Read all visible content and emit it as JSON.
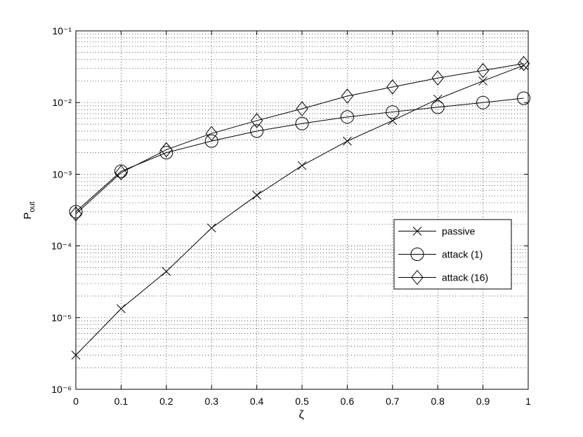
{
  "chart_data": {
    "type": "line",
    "xlabel": "ζ",
    "ylabel": "P",
    "ylabel_sub": "out",
    "x": [
      0,
      0.1,
      0.2,
      0.3,
      0.4,
      0.5,
      0.6,
      0.7,
      0.8,
      0.9,
      0.99
    ],
    "series": [
      {
        "name": "passive",
        "color": "#000000",
        "marker": "x",
        "values": [
          3e-06,
          1.33e-05,
          4.4e-05,
          0.000178,
          0.00051,
          0.00132,
          0.0029,
          0.0056,
          0.0112,
          0.02,
          0.033
        ]
      },
      {
        "name": "attack (1)",
        "color": "#000000",
        "marker": "circle",
        "values": [
          0.0003,
          0.0011,
          0.002,
          0.0029,
          0.004,
          0.0051,
          0.0063,
          0.0074,
          0.0086,
          0.01,
          0.0115
        ]
      },
      {
        "name": "attack (16)",
        "color": "#000000",
        "marker": "diamond",
        "values": [
          0.00028,
          0.00105,
          0.0022,
          0.0037,
          0.0056,
          0.0082,
          0.0123,
          0.0165,
          0.022,
          0.028,
          0.035
        ]
      }
    ],
    "xlim": [
      0,
      1
    ],
    "xticks": [
      0,
      0.1,
      0.2,
      0.3,
      0.4,
      0.5,
      0.6,
      0.7,
      0.8,
      0.9,
      1
    ],
    "ylim": [
      1e-06,
      0.1
    ],
    "yscale": "log",
    "yticks": [
      {
        "value": 1e-06,
        "label": "10⁻⁶"
      },
      {
        "value": 1e-05,
        "label": "10⁻⁵"
      },
      {
        "value": 0.0001,
        "label": "10⁻⁴"
      },
      {
        "value": 0.001,
        "label": "10⁻³"
      },
      {
        "value": 0.01,
        "label": "10⁻²"
      },
      {
        "value": 0.1,
        "label": "10⁻¹"
      }
    ],
    "grid": true,
    "minor_grid": true,
    "legend": "right"
  }
}
